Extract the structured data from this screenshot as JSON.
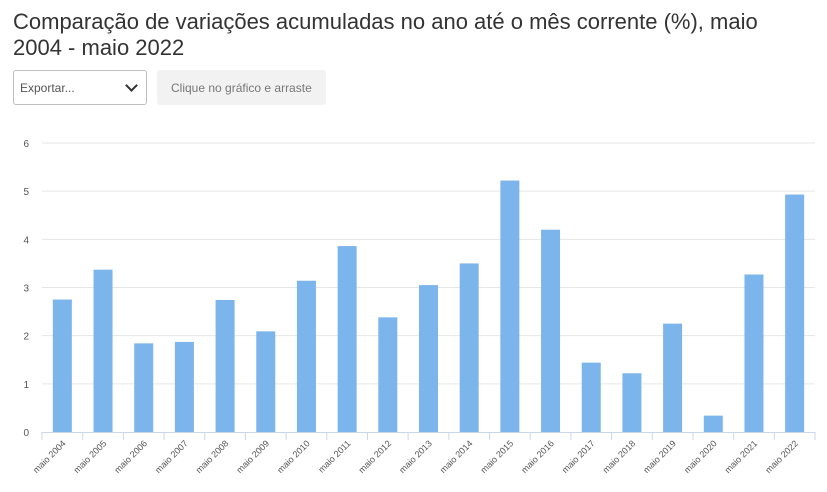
{
  "header": {
    "title": "Comparação de variações acumuladas no ano até o mês corrente (%), maio 2004 - maio 2022"
  },
  "toolbar": {
    "export_label": "Exportar...",
    "hint_label": "Clique no gráfico e arraste"
  },
  "colors": {
    "bar": "#7cb5ec",
    "grid": "#e6e6e6",
    "axis": "#ccd6eb"
  },
  "chart_data": {
    "type": "bar",
    "title": "Comparação de variações acumuladas no ano até o mês corrente (%), maio 2004 - maio 2022",
    "xlabel": "",
    "ylabel": "",
    "ylim": [
      0,
      6
    ],
    "yticks": [
      0,
      1,
      2,
      3,
      4,
      5,
      6
    ],
    "grid": true,
    "categories": [
      "maio 2004",
      "maio 2005",
      "maio 2006",
      "maio 2007",
      "maio 2008",
      "maio 2009",
      "maio 2010",
      "maio 2011",
      "maio 2012",
      "maio 2013",
      "maio 2014",
      "maio 2015",
      "maio 2016",
      "maio 2017",
      "maio 2018",
      "maio 2019",
      "maio 2020",
      "maio 2021",
      "maio 2022"
    ],
    "values": [
      2.75,
      3.37,
      1.84,
      1.87,
      2.74,
      2.09,
      3.14,
      3.86,
      2.38,
      3.05,
      3.5,
      5.22,
      4.2,
      1.44,
      1.22,
      2.25,
      0.34,
      3.27,
      4.93
    ]
  }
}
